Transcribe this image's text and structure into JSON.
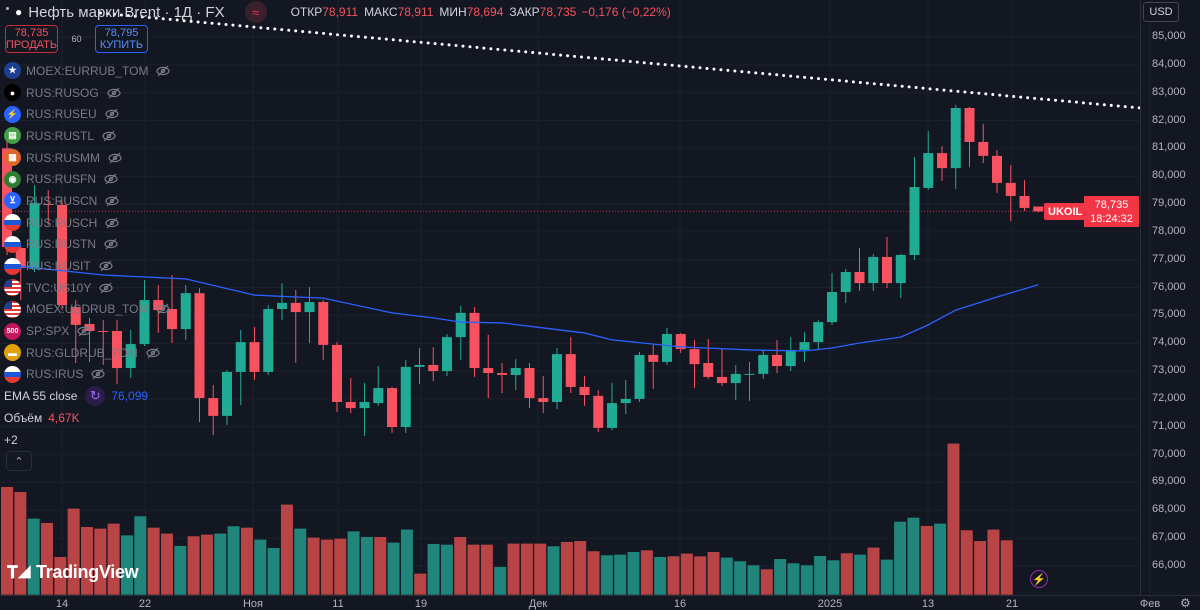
{
  "header": {
    "symbol_icon": "oil-drop-icon",
    "title": "Нефть марки Brent · 1Д · FX",
    "mode_icon": "approx-icon",
    "open_label": "ОТКР",
    "open": "78,911",
    "high_label": "МАКС",
    "high": "78,911",
    "low_label": "МИН",
    "low": "78,694",
    "close_label": "ЗАКР",
    "close": "78,735",
    "change": "−0,176 (−0,22%)"
  },
  "trade": {
    "sell_price": "78,735",
    "sell_label": "ПРОДАТЬ",
    "spread": "60",
    "buy_price": "78,795",
    "buy_label": "КУПИТЬ"
  },
  "legend": {
    "symbols": [
      {
        "name": "MOEX:EURRUB_TOM",
        "icon": "eu-flag"
      },
      {
        "name": "RUS:RUSOG",
        "icon": "oil-drop"
      },
      {
        "name": "RUS:RUSEU",
        "icon": "lightning"
      },
      {
        "name": "RUS:RUSTL",
        "icon": "phone"
      },
      {
        "name": "RUS:RUSMM",
        "icon": "hierarchy"
      },
      {
        "name": "RUS:RUSFN",
        "icon": "coins"
      },
      {
        "name": "RUS:RUSCN",
        "icon": "cart"
      },
      {
        "name": "RUS:RUSCH",
        "icon": "ru-flag"
      },
      {
        "name": "RUS:RUSTN",
        "icon": "ru-flag"
      },
      {
        "name": "RUS:RUSIT",
        "icon": "ru-flag"
      },
      {
        "name": "TVC:US10Y",
        "icon": "us-flag"
      },
      {
        "name": "MOEX:USDRUB_TOM",
        "icon": "us-flag"
      },
      {
        "name": "SP:SPX",
        "icon": "500"
      },
      {
        "name": "RUS:GLDRUB_TOM",
        "icon": "gold-bars"
      },
      {
        "name": "RUS:IRUS",
        "icon": "ru-flag"
      }
    ],
    "ema_label": "EMA 55 close",
    "ema_value": "76,099",
    "volume_label": "Объём",
    "volume_value": "4,67K",
    "more": "+2",
    "collapse_icon": "chevron-up-icon"
  },
  "logo": "TradingView",
  "currency": "USD",
  "last_price_label": {
    "symbol": "UKOIL",
    "price": "78,735",
    "countdown": "18:24:32"
  },
  "colors": {
    "background": "#131722",
    "up": "#22ab94",
    "down": "#f7525f",
    "ema": "#2962ff",
    "volume_up": "#20857a",
    "volume_down": "#b84446"
  },
  "chart_data": {
    "type": "candlestick",
    "y_ticks": [
      "85,000",
      "84,000",
      "83,000",
      "82,000",
      "81,000",
      "80,000",
      "79,000",
      "78,000",
      "77,000",
      "76,000",
      "75,000",
      "74,000",
      "73,000",
      "72,000",
      "71,000",
      "70,000",
      "69,000",
      "68,000",
      "67,000",
      "66,000"
    ],
    "ylim": [
      66,
      85
    ],
    "x_ticks": [
      "14",
      "22",
      "Ноя",
      "11",
      "19",
      "Дек",
      "16",
      "2025",
      "13",
      "21",
      "Фев"
    ],
    "grid": true,
    "ohlc": [
      [
        81.0,
        81.3,
        77.17,
        77.46
      ],
      [
        77.42,
        77.53,
        75.55,
        76.7
      ],
      [
        76.67,
        79.68,
        76.56,
        79.04
      ],
      [
        79.0,
        79.5,
        78.25,
        78.97
      ],
      [
        78.97,
        79.14,
        75.19,
        75.37
      ],
      [
        75.3,
        75.55,
        73.29,
        74.66
      ],
      [
        74.69,
        74.91,
        73.33,
        74.44
      ],
      [
        74.44,
        74.83,
        73.22,
        74.42
      ],
      [
        74.44,
        74.83,
        72.54,
        73.11
      ],
      [
        73.11,
        74.48,
        72.75,
        73.97
      ],
      [
        73.97,
        76.27,
        73.9,
        75.55
      ],
      [
        75.55,
        76.09,
        74.37,
        75.19
      ],
      [
        75.23,
        76.45,
        74.01,
        74.51
      ],
      [
        74.51,
        76.09,
        74.12,
        75.8
      ],
      [
        75.8,
        75.98,
        71.17,
        72.03
      ],
      [
        72.03,
        72.5,
        70.7,
        71.39
      ],
      [
        71.39,
        73.04,
        71.06,
        72.97
      ],
      [
        72.97,
        74.48,
        71.78,
        74.04
      ],
      [
        74.04,
        74.58,
        72.68,
        72.97
      ],
      [
        72.97,
        75.37,
        72.86,
        75.23
      ],
      [
        75.23,
        76.16,
        74.83,
        75.45
      ],
      [
        75.45,
        75.91,
        73.29,
        75.12
      ],
      [
        75.12,
        76.02,
        74.01,
        75.48
      ],
      [
        75.48,
        75.55,
        73.4,
        73.94
      ],
      [
        73.94,
        74.04,
        71.53,
        71.89
      ],
      [
        71.89,
        72.75,
        71.49,
        71.67
      ],
      [
        71.67,
        72.57,
        70.67,
        71.89
      ],
      [
        71.85,
        73.18,
        71.75,
        72.39
      ],
      [
        72.39,
        72.43,
        70.78,
        70.99
      ],
      [
        70.99,
        73.4,
        70.78,
        73.15
      ],
      [
        73.15,
        73.83,
        72.54,
        73.22
      ],
      [
        73.22,
        73.86,
        72.64,
        73.0
      ],
      [
        73.0,
        74.33,
        72.82,
        74.22
      ],
      [
        74.22,
        75.34,
        73.4,
        75.09
      ],
      [
        75.09,
        75.3,
        72.79,
        73.11
      ],
      [
        73.11,
        74.3,
        72.03,
        72.93
      ],
      [
        72.93,
        73.29,
        72.21,
        72.86
      ],
      [
        72.86,
        73.43,
        72.32,
        73.11
      ],
      [
        73.11,
        73.29,
        71.67,
        72.03
      ],
      [
        72.03,
        72.82,
        71.49,
        71.89
      ],
      [
        71.89,
        73.83,
        71.64,
        73.61
      ],
      [
        73.61,
        74.22,
        72.21,
        72.43
      ],
      [
        72.43,
        72.82,
        71.75,
        72.14
      ],
      [
        72.11,
        72.32,
        70.81,
        70.96
      ],
      [
        70.96,
        72.57,
        70.88,
        71.85
      ],
      [
        71.85,
        72.68,
        71.46,
        72.0
      ],
      [
        72.0,
        73.69,
        71.89,
        73.58
      ],
      [
        73.58,
        73.94,
        72.36,
        73.33
      ],
      [
        73.33,
        74.55,
        73.22,
        74.33
      ],
      [
        74.33,
        74.37,
        73.65,
        73.79
      ],
      [
        73.79,
        74.12,
        72.39,
        73.25
      ],
      [
        73.29,
        74.15,
        72.72,
        72.79
      ],
      [
        72.79,
        73.79,
        72.46,
        72.57
      ],
      [
        72.57,
        73.22,
        71.96,
        72.9
      ],
      [
        72.88,
        73.33,
        71.93,
        72.9
      ],
      [
        72.9,
        73.76,
        72.72,
        73.58
      ],
      [
        73.58,
        74.12,
        72.93,
        73.18
      ],
      [
        73.18,
        74.22,
        73.0,
        73.76
      ],
      [
        73.76,
        74.4,
        73.33,
        74.04
      ],
      [
        74.04,
        74.83,
        73.76,
        74.76
      ],
      [
        74.76,
        76.52,
        74.66,
        75.84
      ],
      [
        75.84,
        76.67,
        75.45,
        76.56
      ],
      [
        76.56,
        77.42,
        75.88,
        76.16
      ],
      [
        76.16,
        77.21,
        75.88,
        77.1
      ],
      [
        77.1,
        77.82,
        75.98,
        76.16
      ],
      [
        76.16,
        77.21,
        75.63,
        77.17
      ],
      [
        77.17,
        80.69,
        76.99,
        79.61
      ],
      [
        79.58,
        81.62,
        79.5,
        80.83
      ],
      [
        80.83,
        81.08,
        79.83,
        80.29
      ],
      [
        80.29,
        82.56,
        79.54,
        82.45
      ],
      [
        82.45,
        82.49,
        80.33,
        81.23
      ],
      [
        81.23,
        81.88,
        80.47,
        80.73
      ],
      [
        80.73,
        80.94,
        79.4,
        79.76
      ],
      [
        79.76,
        80.4,
        78.39,
        79.29
      ],
      [
        79.29,
        79.86,
        78.75,
        78.86
      ],
      [
        78.911,
        78.911,
        78.694,
        78.735
      ]
    ],
    "volume_k": [
      [
        9.2,
        "down"
      ],
      [
        8.77,
        "down"
      ],
      [
        6.51,
        "up"
      ],
      [
        6.14,
        "down"
      ],
      [
        3.25,
        "down"
      ],
      [
        7.36,
        "down"
      ],
      [
        5.8,
        "down"
      ],
      [
        5.66,
        "down"
      ],
      [
        6.08,
        "down"
      ],
      [
        5.09,
        "up"
      ],
      [
        6.71,
        "up"
      ],
      [
        5.74,
        "down"
      ],
      [
        5.24,
        "down"
      ],
      [
        4.19,
        "up"
      ],
      [
        5.01,
        "down"
      ],
      [
        5.15,
        "down"
      ],
      [
        5.24,
        "up"
      ],
      [
        5.86,
        "up"
      ],
      [
        5.74,
        "down"
      ],
      [
        4.73,
        "up"
      ],
      [
        4.02,
        "up"
      ],
      [
        7.7,
        "down"
      ],
      [
        5.66,
        "up"
      ],
      [
        4.9,
        "down"
      ],
      [
        4.73,
        "down"
      ],
      [
        4.81,
        "down"
      ],
      [
        5.43,
        "up"
      ],
      [
        4.95,
        "up"
      ],
      [
        4.95,
        "down"
      ],
      [
        4.47,
        "up"
      ],
      [
        5.58,
        "up"
      ],
      [
        1.84,
        "down"
      ],
      [
        4.36,
        "up"
      ],
      [
        4.3,
        "up"
      ],
      [
        4.95,
        "down"
      ],
      [
        4.3,
        "down"
      ],
      [
        4.3,
        "down"
      ],
      [
        2.41,
        "up"
      ],
      [
        4.39,
        "down"
      ],
      [
        4.39,
        "down"
      ],
      [
        4.39,
        "down"
      ],
      [
        4.16,
        "up"
      ],
      [
        4.53,
        "down"
      ],
      [
        4.61,
        "down"
      ],
      [
        3.74,
        "down"
      ],
      [
        3.4,
        "up"
      ],
      [
        3.45,
        "up"
      ],
      [
        3.68,
        "up"
      ],
      [
        3.82,
        "down"
      ],
      [
        3.25,
        "up"
      ],
      [
        3.31,
        "down"
      ],
      [
        3.54,
        "down"
      ],
      [
        3.31,
        "down"
      ],
      [
        3.68,
        "down"
      ],
      [
        3.2,
        "up"
      ],
      [
        2.89,
        "up"
      ],
      [
        2.55,
        "up"
      ],
      [
        2.21,
        "down"
      ],
      [
        3.08,
        "up"
      ],
      [
        2.72,
        "up"
      ],
      [
        2.55,
        "up"
      ],
      [
        3.34,
        "up"
      ],
      [
        2.97,
        "up"
      ],
      [
        3.57,
        "down"
      ],
      [
        3.45,
        "up"
      ],
      [
        4.05,
        "down"
      ],
      [
        3.03,
        "up"
      ],
      [
        6.25,
        "up"
      ],
      [
        6.59,
        "up"
      ],
      [
        5.89,
        "down"
      ],
      [
        6.08,
        "up"
      ],
      [
        12.88,
        "down"
      ],
      [
        5.52,
        "down"
      ],
      [
        4.61,
        "down"
      ],
      [
        5.58,
        "down"
      ],
      [
        4.67,
        "down"
      ]
    ],
    "ema_55": [
      [
        0,
        76.81
      ],
      [
        7,
        76.45
      ],
      [
        13,
        76.31
      ],
      [
        18,
        75.73
      ],
      [
        21,
        75.66
      ],
      [
        23,
        75.62
      ],
      [
        28,
        75.09
      ],
      [
        31,
        74.91
      ],
      [
        33,
        74.76
      ],
      [
        36,
        74.73
      ],
      [
        39,
        74.55
      ],
      [
        42,
        74.37
      ],
      [
        44,
        74.12
      ],
      [
        49,
        73.87
      ],
      [
        54,
        73.76
      ],
      [
        58,
        73.72
      ],
      [
        60,
        73.83
      ],
      [
        62,
        74.01
      ],
      [
        65,
        74.22
      ],
      [
        67,
        74.66
      ],
      [
        69,
        75.19
      ],
      [
        72,
        75.66
      ],
      [
        75,
        76.1
      ]
    ],
    "trendline": [
      [
        6.8,
        85.86
      ],
      [
        82.4,
        82.45
      ]
    ],
    "last_price": 78.735
  }
}
